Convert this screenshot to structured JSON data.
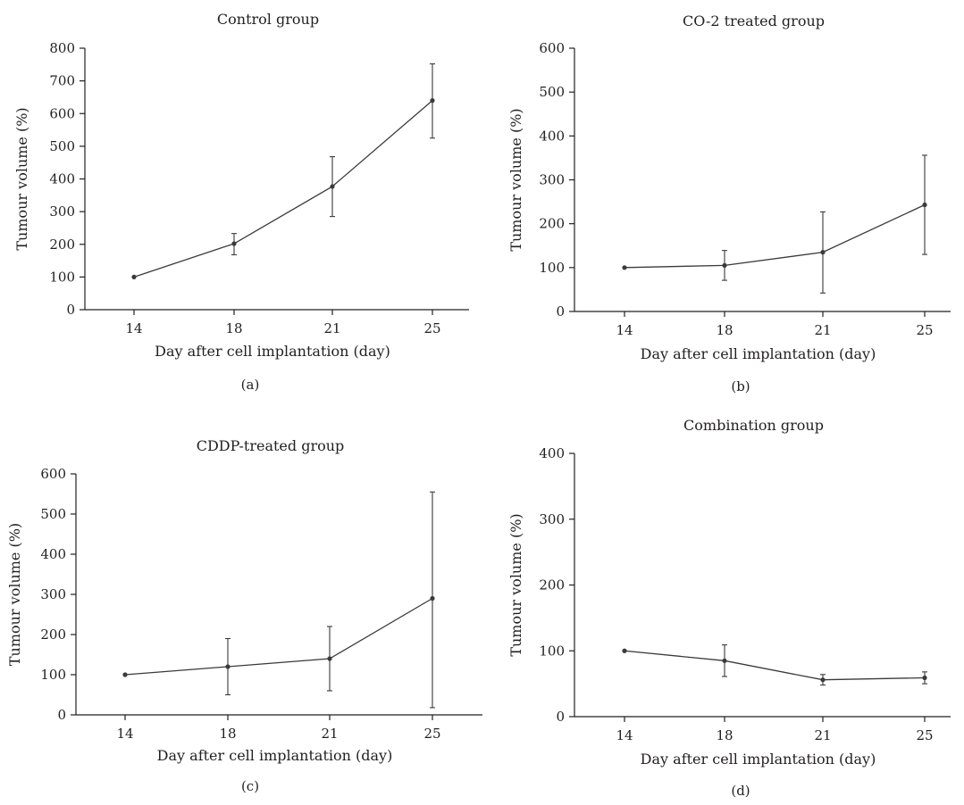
{
  "chart_data": [
    {
      "type": "line",
      "panel_label": "(a)",
      "title": "Control group",
      "xlabel": "Day after cell implantation (day)",
      "ylabel": "Tumour volume (%)",
      "categories": [
        "14",
        "18",
        "21",
        "25"
      ],
      "yticks": [
        "0",
        "100",
        "200",
        "300",
        "400",
        "500",
        "600",
        "700",
        "800"
      ],
      "ylim": [
        0,
        800
      ],
      "series": [
        {
          "values": [
            100,
            202,
            377,
            640
          ],
          "error_low": [
            100,
            168,
            285,
            525
          ],
          "error_high": [
            100,
            233,
            468,
            752
          ]
        }
      ],
      "grid": false,
      "color": "#3a3a3c"
    },
    {
      "type": "line",
      "panel_label": "(b)",
      "title": "CO-2 treated group",
      "xlabel": "Day after cell implantation (day)",
      "ylabel": "Tumour volume (%)",
      "categories": [
        "14",
        "18",
        "21",
        "25"
      ],
      "yticks": [
        "0",
        "100",
        "200",
        "300",
        "400",
        "500",
        "600"
      ],
      "ylim": [
        0,
        600
      ],
      "series": [
        {
          "values": [
            100,
            105,
            135,
            243
          ],
          "error_low": [
            100,
            71,
            42,
            130
          ],
          "error_high": [
            100,
            139,
            227,
            356
          ]
        }
      ],
      "grid": false,
      "color": "#3a3a3c"
    },
    {
      "type": "line",
      "panel_label": "(c)",
      "title": "CDDP-treated group",
      "xlabel": "Day after cell implantation (day)",
      "ylabel": "Tumour volume (%)",
      "categories": [
        "14",
        "18",
        "21",
        "25"
      ],
      "yticks": [
        "0",
        "100",
        "200",
        "300",
        "400",
        "500",
        "600"
      ],
      "ylim": [
        0,
        600
      ],
      "series": [
        {
          "values": [
            100,
            120,
            140,
            290
          ],
          "error_low": [
            100,
            50,
            60,
            18
          ],
          "error_high": [
            100,
            190,
            220,
            555
          ]
        }
      ],
      "grid": false,
      "color": "#3a3a3c"
    },
    {
      "type": "line",
      "panel_label": "(d)",
      "title": "Combination group",
      "xlabel": "Day after cell implantation (day)",
      "ylabel": "Tumour volume (%)",
      "categories": [
        "14",
        "18",
        "21",
        "25"
      ],
      "yticks": [
        "0",
        "100",
        "200",
        "300",
        "400"
      ],
      "ylim": [
        0,
        400
      ],
      "series": [
        {
          "values": [
            100,
            85,
            56,
            59
          ],
          "error_low": [
            100,
            61,
            48,
            50
          ],
          "error_high": [
            100,
            109,
            64,
            68
          ]
        }
      ],
      "grid": false,
      "color": "#3a3a3c"
    }
  ]
}
